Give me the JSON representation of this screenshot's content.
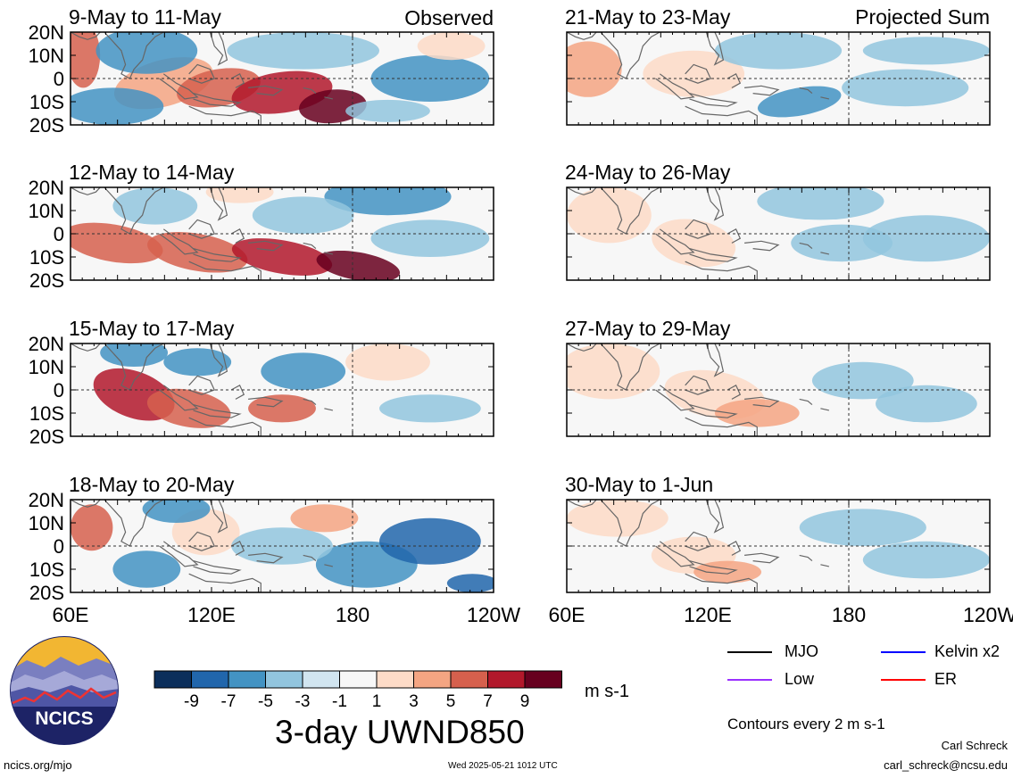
{
  "observed_label": "Observed",
  "projected_label": "Projected Sum",
  "lat_labels": [
    "20N",
    "10N",
    "0",
    "10S",
    "20S"
  ],
  "lon_labels": [
    "60E",
    "120E",
    "180",
    "120W"
  ],
  "panels": [
    {
      "title": "9-May to 11-May",
      "column": "observed"
    },
    {
      "title": "12-May to 14-May",
      "column": "observed"
    },
    {
      "title": "15-May to 17-May",
      "column": "observed"
    },
    {
      "title": "18-May to 20-May",
      "column": "observed"
    },
    {
      "title": "21-May to 23-May",
      "column": "projected"
    },
    {
      "title": "24-May to 26-May",
      "column": "projected"
    },
    {
      "title": "27-May to 29-May",
      "column": "projected"
    },
    {
      "title": "30-May to 1-Jun",
      "column": "projected"
    }
  ],
  "colorbar": {
    "colors": [
      "#0b2e5b",
      "#2166ac",
      "#4393c3",
      "#92c5de",
      "#d1e5f0",
      "#f7f7f7",
      "#fddbc7",
      "#f4a582",
      "#d6604d",
      "#b2182b",
      "#67001f"
    ],
    "tick_labels": [
      "-9",
      "-7",
      "-5",
      "-3",
      "-1",
      "1",
      "3",
      "5",
      "7",
      "9"
    ],
    "units": "m s-1"
  },
  "product_title": "3-day UWND850",
  "legend": [
    {
      "label": "MJO",
      "color": "#000000"
    },
    {
      "label": "Kelvin x2",
      "color": "#0000ff"
    },
    {
      "label": "Low",
      "color": "#9b30ff"
    },
    {
      "label": "ER",
      "color": "#ff0000"
    }
  ],
  "contour_note": "Contours every 2 m s-1",
  "author": "Carl Schreck",
  "email": "carl_schreck@ncsu.edu",
  "site": "ncics.org/mjo",
  "timestamp": "Wed 2025-05-21 1012 UTC",
  "logo_text": "NCICS"
}
